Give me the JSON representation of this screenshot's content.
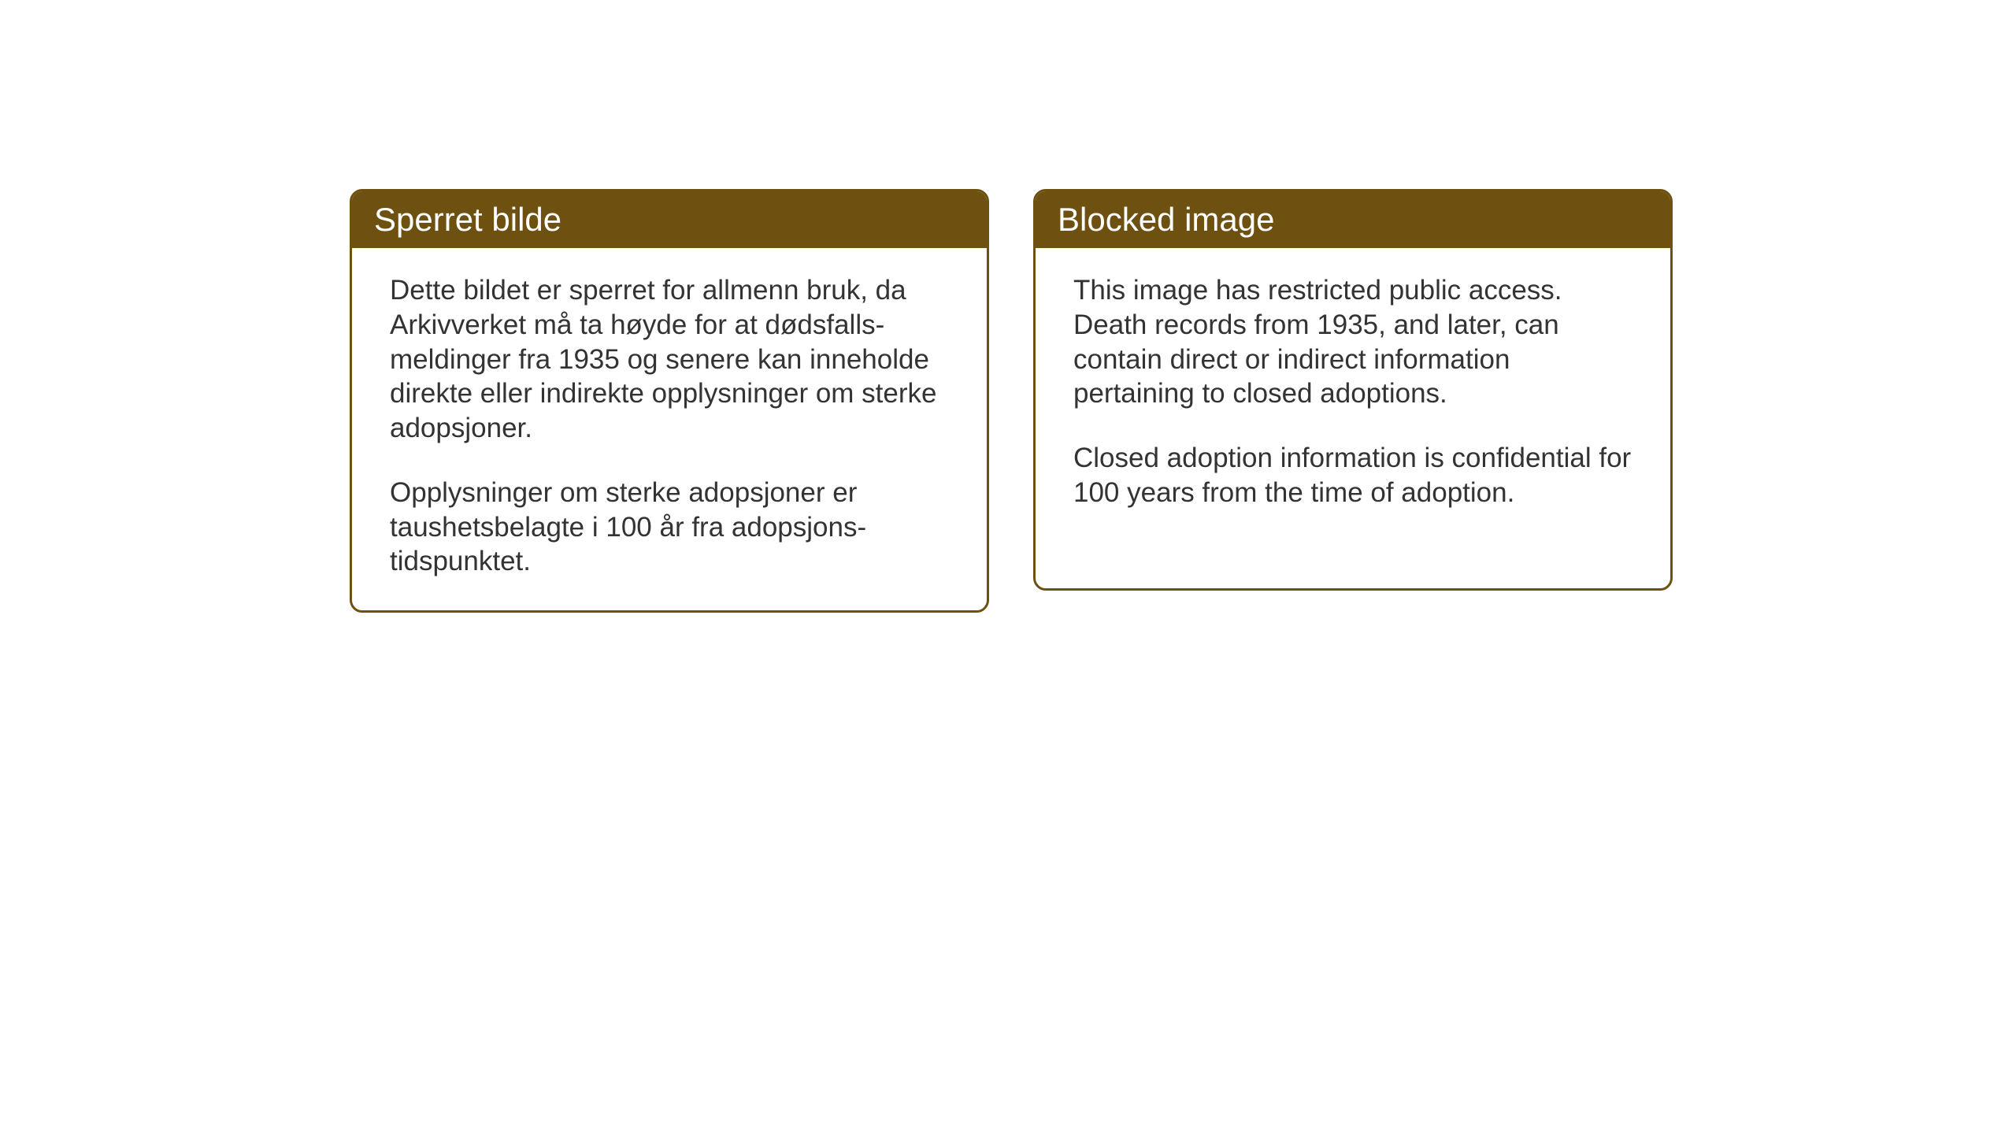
{
  "cards": {
    "norwegian": {
      "title": "Sperret bilde",
      "paragraph1": "Dette bildet er sperret for allmenn bruk, da Arkivverket må ta høyde for at dødsfalls-meldinger fra 1935 og senere kan inneholde direkte eller indirekte opplysninger om sterke adopsjoner.",
      "paragraph2": "Opplysninger om sterke adopsjoner er taushetsbelagte i 100 år fra adopsjons-tidspunktet."
    },
    "english": {
      "title": "Blocked image",
      "paragraph1": "This image has restricted public access. Death records from 1935, and later, can contain direct or indirect information pertaining to closed adoptions.",
      "paragraph2": "Closed adoption information is confidential for 100 years from the time of adoption."
    }
  },
  "styling": {
    "header_bg_color": "#6e5110",
    "header_text_color": "#ffffff",
    "border_color": "#6e5110",
    "body_text_color": "#333333",
    "card_bg_color": "#ffffff",
    "page_bg_color": "#ffffff",
    "header_fontsize": 42,
    "body_fontsize": 35,
    "border_radius": 16,
    "border_width": 3
  }
}
